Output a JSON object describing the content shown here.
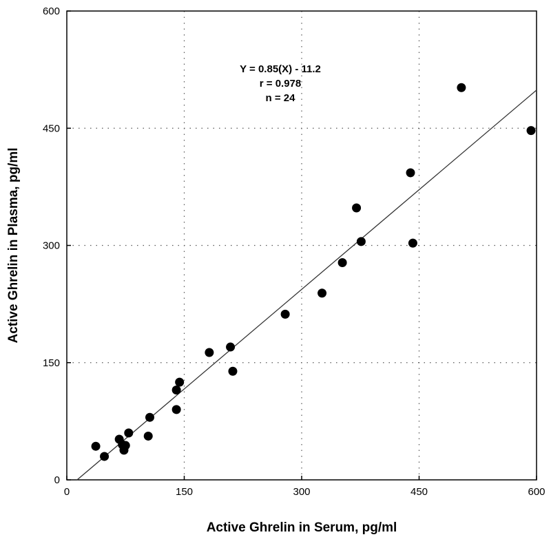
{
  "chart_data": {
    "type": "scatter",
    "title": "",
    "xlabel": "Active Ghrelin in Serum, pg/ml",
    "ylabel": "Active Ghrelin in Plasma, pg/ml",
    "xlim": [
      0,
      600
    ],
    "ylim": [
      0,
      600
    ],
    "xticks": [
      "0",
      "150",
      "300",
      "450",
      "600"
    ],
    "yticks": [
      "0",
      "150",
      "300",
      "450",
      "600"
    ],
    "grid": true,
    "annotations": [
      "Y = 0.85(X) - 11.2",
      "r = 0.978",
      "n = 24"
    ],
    "regression": {
      "slope": 0.85,
      "intercept": -11.2,
      "x_range": [
        13,
        600
      ]
    },
    "points": [
      {
        "x": 37,
        "y": 43
      },
      {
        "x": 48,
        "y": 30
      },
      {
        "x": 67,
        "y": 52
      },
      {
        "x": 71,
        "y": 45
      },
      {
        "x": 73,
        "y": 38
      },
      {
        "x": 75,
        "y": 44
      },
      {
        "x": 79,
        "y": 60
      },
      {
        "x": 104,
        "y": 56
      },
      {
        "x": 106,
        "y": 80
      },
      {
        "x": 140,
        "y": 90
      },
      {
        "x": 140,
        "y": 115
      },
      {
        "x": 144,
        "y": 125
      },
      {
        "x": 182,
        "y": 163
      },
      {
        "x": 209,
        "y": 170
      },
      {
        "x": 212,
        "y": 139
      },
      {
        "x": 279,
        "y": 212
      },
      {
        "x": 326,
        "y": 239
      },
      {
        "x": 352,
        "y": 278
      },
      {
        "x": 370,
        "y": 348
      },
      {
        "x": 376,
        "y": 305
      },
      {
        "x": 439,
        "y": 393
      },
      {
        "x": 442,
        "y": 303
      },
      {
        "x": 504,
        "y": 502
      },
      {
        "x": 593,
        "y": 447
      }
    ]
  }
}
